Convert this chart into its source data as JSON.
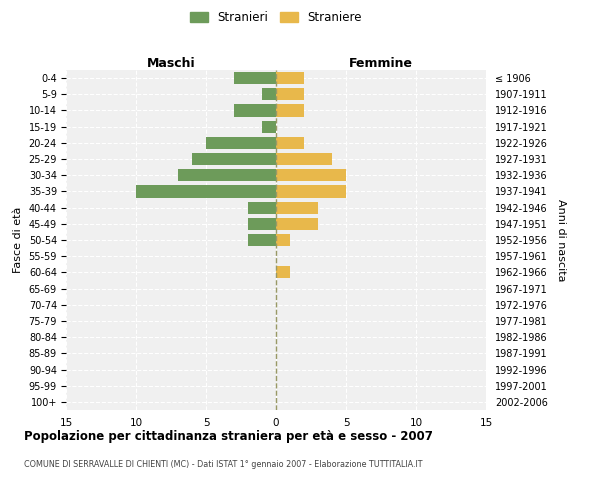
{
  "age_groups": [
    "0-4",
    "5-9",
    "10-14",
    "15-19",
    "20-24",
    "25-29",
    "30-34",
    "35-39",
    "40-44",
    "45-49",
    "50-54",
    "55-59",
    "60-64",
    "65-69",
    "70-74",
    "75-79",
    "80-84",
    "85-89",
    "90-94",
    "95-99",
    "100+"
  ],
  "birth_years": [
    "2002-2006",
    "1997-2001",
    "1992-1996",
    "1987-1991",
    "1982-1986",
    "1977-1981",
    "1972-1976",
    "1967-1971",
    "1962-1966",
    "1957-1961",
    "1952-1956",
    "1947-1951",
    "1942-1946",
    "1937-1941",
    "1932-1936",
    "1927-1931",
    "1922-1926",
    "1917-1921",
    "1912-1916",
    "1907-1911",
    "≤ 1906"
  ],
  "maschi": [
    3,
    1,
    3,
    1,
    5,
    6,
    7,
    10,
    2,
    2,
    2,
    0,
    0,
    0,
    0,
    0,
    0,
    0,
    0,
    0,
    0
  ],
  "femmine": [
    2,
    2,
    2,
    0,
    2,
    4,
    5,
    5,
    3,
    3,
    1,
    0,
    1,
    0,
    0,
    0,
    0,
    0,
    0,
    0,
    0
  ],
  "male_color": "#6d9b5a",
  "female_color": "#e8b84b",
  "title": "Popolazione per cittadinanza straniera per età e sesso - 2007",
  "subtitle": "COMUNE DI SERRAVALLE DI CHIENTI (MC) - Dati ISTAT 1° gennaio 2007 - Elaborazione TUTTITALIA.IT",
  "ylabel_left": "Fasce di età",
  "ylabel_right": "Anni di nascita",
  "xlabel_left": "Maschi",
  "xlabel_right": "Femmine",
  "legend_male": "Stranieri",
  "legend_female": "Straniere",
  "xlim": 15,
  "bg_color": "#ffffff",
  "plot_bg_color": "#f0f0f0",
  "grid_color": "#ffffff",
  "bar_height": 0.75
}
